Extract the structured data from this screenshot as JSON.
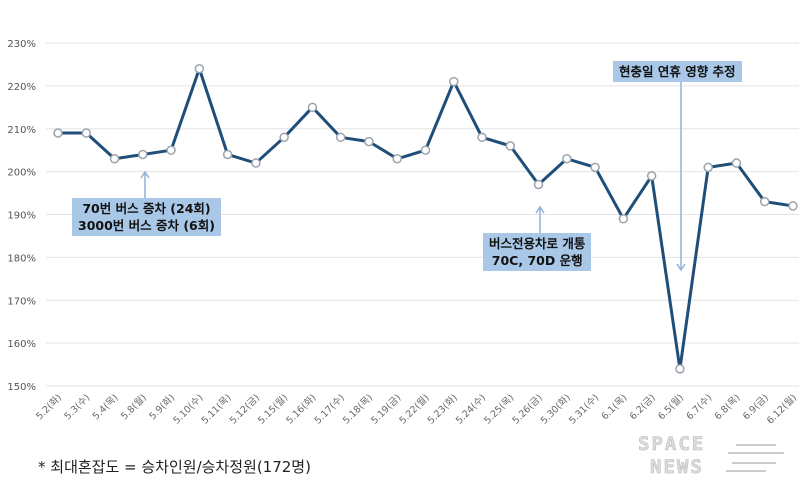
{
  "chart_data": {
    "type": "line",
    "title": "",
    "xlabel": "",
    "ylabel": "",
    "ylim": [
      150,
      230
    ],
    "yticks": [
      "150%",
      "160%",
      "170%",
      "180%",
      "190%",
      "200%",
      "210%",
      "220%",
      "230%"
    ],
    "grid": true,
    "categories": [
      "5.2(화)",
      "5.3(수)",
      "5.4(목)",
      "5.8(월)",
      "5.9(화)",
      "5.10(수)",
      "5.11(목)",
      "5.12(금)",
      "5.15(월)",
      "5.16(화)",
      "5.17(수)",
      "5.18(목)",
      "5.19(금)",
      "5.22(월)",
      "5.23(화)",
      "5.24(수)",
      "5.25(목)",
      "5.26(금)",
      "5.30(화)",
      "5.31(수)",
      "6.1(목)",
      "6.2(금)",
      "6.5(월)",
      "6.7(수)",
      "6.8(목)",
      "6.9(금)",
      "6.12(월)"
    ],
    "series": [
      {
        "name": "최대혼잡도",
        "values": [
          209,
          209,
          203,
          204,
          205,
          224,
          204,
          202,
          208,
          215,
          208,
          207,
          203,
          205,
          221,
          208,
          206,
          197,
          203,
          201,
          189,
          199,
          154,
          201,
          202,
          193,
          192
        ]
      }
    ],
    "line_color": "#1f4e79",
    "annotations": [
      {
        "text": "70번 버스 증차 (24회)\n3000번 버스 증차 (6회)",
        "category": "5.8(월)"
      },
      {
        "text": "버스전용차로 개통\n70C, 70D 운행",
        "category": "5.26(금)"
      },
      {
        "text": "현충일 연휴 영향 추정",
        "category": "6.5(월)"
      }
    ]
  },
  "footnote": "* 최대혼잡도 = 승차인원/승차정원(172명)",
  "logo": "SPACE NEWS"
}
